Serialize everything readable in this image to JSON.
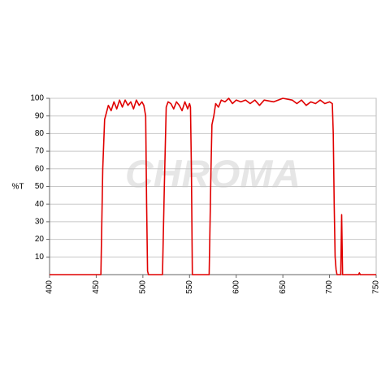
{
  "chart_data": {
    "type": "line",
    "y_label": "%T",
    "watermark": "CHROMA",
    "x": [
      400,
      455,
      457,
      459,
      461,
      463,
      466,
      469,
      472,
      475,
      478,
      481,
      484,
      487,
      490,
      493,
      496,
      499,
      501,
      503,
      504,
      505,
      506,
      521,
      523,
      525,
      527,
      530,
      533,
      536,
      539,
      542,
      545,
      548,
      550,
      551,
      552,
      553,
      571,
      573,
      574,
      576,
      578,
      581,
      584,
      588,
      592,
      596,
      600,
      605,
      610,
      615,
      620,
      625,
      630,
      640,
      650,
      660,
      665,
      670,
      675,
      680,
      685,
      690,
      695,
      700,
      703,
      704,
      705,
      706,
      707,
      708,
      712,
      713,
      714,
      731,
      732,
      733,
      750
    ],
    "series": [
      {
        "name": null,
        "color": "#e00000",
        "values": [
          0,
          0,
          60,
          88,
          92,
          96,
          93,
          98,
          94,
          99,
          95,
          99,
          96,
          98,
          94,
          99,
          96,
          98,
          96,
          90,
          40,
          2,
          0,
          0,
          50,
          95,
          98,
          97,
          94,
          98,
          96,
          93,
          98,
          94,
          97,
          95,
          60,
          0,
          0,
          60,
          85,
          90,
          97,
          95,
          99,
          98,
          100,
          97,
          99,
          98,
          99,
          97,
          99,
          96,
          99,
          98,
          100,
          99,
          97,
          99,
          96,
          98,
          97,
          99,
          97,
          98,
          97,
          80,
          40,
          10,
          3,
          0,
          0,
          34,
          0,
          0,
          1,
          0,
          0
        ]
      }
    ],
    "xlim": [
      400,
      750
    ],
    "xticks": [
      400,
      450,
      500,
      550,
      600,
      650,
      700,
      750
    ],
    "ylim": [
      0,
      100
    ],
    "yticks": [
      10,
      20,
      30,
      40,
      50,
      60,
      70,
      80,
      90,
      100
    ],
    "grid": true
  }
}
